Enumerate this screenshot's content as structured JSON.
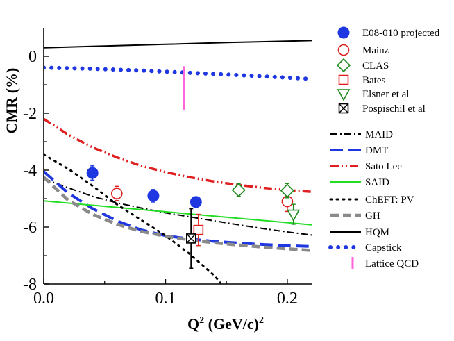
{
  "chart_data": {
    "type": "scatter",
    "title": "",
    "xlabel": {
      "base": "Q",
      "sup1": "2",
      "unit": " (GeV/c)",
      "sup2": "2"
    },
    "ylabel": "CMR (%)",
    "xlim": [
      0.0,
      0.22
    ],
    "ylim": [
      -8,
      1.0
    ],
    "x_ticks": [
      0.0,
      0.1,
      0.2
    ],
    "x_tick_labels": [
      "0.0",
      "0.1",
      "0.2"
    ],
    "y_ticks": [
      0,
      -2,
      -4,
      -6,
      -8
    ],
    "y_tick_labels": [
      "0",
      "-2",
      "-4",
      "-6",
      "-8"
    ],
    "grid": false,
    "legend_placement": "right",
    "data_series": [
      {
        "name": "E08-010 projected",
        "marker": "filled-circle",
        "color": "#1f37e0",
        "points": [
          {
            "x": 0.04,
            "y": -4.1,
            "err": 0.25
          },
          {
            "x": 0.09,
            "y": -4.9,
            "err": 0.22
          },
          {
            "x": 0.125,
            "y": -5.12,
            "err": 0.18
          }
        ]
      },
      {
        "name": "Mainz",
        "marker": "open-circle",
        "color": "#e02020",
        "points": [
          {
            "x": 0.06,
            "y": -4.82,
            "err": 0.25
          },
          {
            "x": 0.2,
            "y": -5.1,
            "err": 0.35
          }
        ]
      },
      {
        "name": "CLAS",
        "marker": "open-diamond",
        "color": "#1e8a1e",
        "points": [
          {
            "x": 0.16,
            "y": -4.7,
            "err": 0.22
          },
          {
            "x": 0.2,
            "y": -4.72,
            "err": 0.25
          }
        ]
      },
      {
        "name": "Bates",
        "marker": "open-square",
        "color": "#e02020",
        "points": [
          {
            "x": 0.127,
            "y": -6.1,
            "err": 0.55
          }
        ]
      },
      {
        "name": "Elsner et al",
        "marker": "open-triangle-down",
        "color": "#1e8a1e",
        "points": [
          {
            "x": 0.205,
            "y": -5.55,
            "err": 0.35
          }
        ]
      },
      {
        "name": "Pospischil et al",
        "marker": "boxed-x",
        "color": "#000000",
        "points": [
          {
            "x": 0.121,
            "y": -6.4,
            "err": 1.05
          }
        ]
      }
    ],
    "theory_curves": [
      {
        "name": "MAID",
        "color": "#000000",
        "style": "dashdot",
        "x": [
          0.0,
          0.02,
          0.04,
          0.06,
          0.08,
          0.1,
          0.12,
          0.14,
          0.16,
          0.18,
          0.2,
          0.22
        ],
        "y": [
          -4.3,
          -4.62,
          -4.92,
          -5.15,
          -5.33,
          -5.5,
          -5.64,
          -5.78,
          -5.92,
          -6.05,
          -6.17,
          -6.28
        ]
      },
      {
        "name": "DMT",
        "color": "#1f37e0",
        "style": "longdash",
        "x": [
          0.0,
          0.02,
          0.04,
          0.06,
          0.08,
          0.1,
          0.12,
          0.14,
          0.16,
          0.18,
          0.2,
          0.22
        ],
        "y": [
          -4.05,
          -4.8,
          -5.35,
          -5.78,
          -6.1,
          -6.3,
          -6.42,
          -6.5,
          -6.56,
          -6.61,
          -6.65,
          -6.68
        ]
      },
      {
        "name": "Sato Lee",
        "color": "#e02020",
        "style": "dashdotdot",
        "x": [
          0.0,
          0.02,
          0.04,
          0.06,
          0.08,
          0.1,
          0.12,
          0.14,
          0.16,
          0.18,
          0.2,
          0.22
        ],
        "y": [
          -2.2,
          -2.75,
          -3.2,
          -3.55,
          -3.85,
          -4.07,
          -4.25,
          -4.4,
          -4.52,
          -4.62,
          -4.7,
          -4.76
        ]
      },
      {
        "name": "SAID",
        "color": "#22dd22",
        "style": "solid",
        "x": [
          0.0,
          0.22
        ],
        "y": [
          -5.08,
          -5.92
        ]
      },
      {
        "name": "ChEFT: PV",
        "color": "#000000",
        "style": "dotted",
        "x": [
          0.0,
          0.02,
          0.04,
          0.06,
          0.08,
          0.1,
          0.12,
          0.14,
          0.145
        ],
        "y": [
          -3.45,
          -3.95,
          -4.55,
          -5.2,
          -5.75,
          -6.3,
          -6.95,
          -7.7,
          -7.95
        ]
      },
      {
        "name": "GH",
        "color": "#8a8a8a",
        "style": "thickdash",
        "x": [
          0.0,
          0.02,
          0.04,
          0.06,
          0.08,
          0.1,
          0.12,
          0.14,
          0.16,
          0.18,
          0.2,
          0.22
        ],
        "y": [
          -4.25,
          -5.05,
          -5.55,
          -5.9,
          -6.15,
          -6.32,
          -6.45,
          -6.55,
          -6.63,
          -6.7,
          -6.76,
          -6.82
        ]
      },
      {
        "name": "HQM",
        "color": "#000000",
        "style": "solid",
        "x": [
          0.0,
          0.05,
          0.1,
          0.15,
          0.22
        ],
        "y": [
          0.3,
          0.36,
          0.42,
          0.48,
          0.55
        ]
      },
      {
        "name": "Capstick",
        "color": "#1f37e0",
        "style": "bigdots",
        "x": [
          0.0,
          0.04,
          0.08,
          0.12,
          0.16,
          0.2,
          0.22
        ],
        "y": [
          -0.4,
          -0.44,
          -0.5,
          -0.58,
          -0.66,
          -0.75,
          -0.8
        ]
      }
    ],
    "lattice": {
      "name": "Lattice QCD",
      "color": "#ff66d9",
      "x": 0.115,
      "y_low": -1.9,
      "y_high": -0.35
    }
  }
}
